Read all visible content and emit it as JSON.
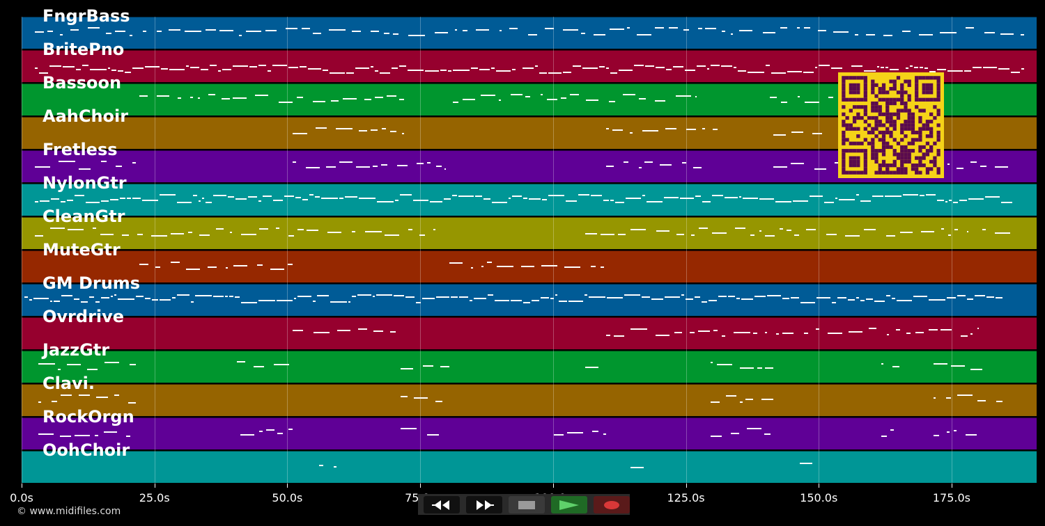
{
  "tracks": [
    {
      "name": "FngrBass",
      "color": "#005b96"
    },
    {
      "name": "BritePno",
      "color": "#96002e"
    },
    {
      "name": "Bassoon",
      "color": "#00962e"
    },
    {
      "name": "AahChoir",
      "color": "#966400"
    },
    {
      "name": "Fretless",
      "color": "#5f0096"
    },
    {
      "name": "NylonGtr",
      "color": "#009696"
    },
    {
      "name": "CleanGtr",
      "color": "#969600"
    },
    {
      "name": "MuteGtr",
      "color": "#962800"
    },
    {
      "name": "GM Drums",
      "color": "#005b96"
    },
    {
      "name": "Ovrdrive",
      "color": "#96002e"
    },
    {
      "name": "JazzGtr",
      "color": "#00962e"
    },
    {
      "name": "Clavi.",
      "color": "#966400"
    },
    {
      "name": "RockOrgn",
      "color": "#5f0096"
    },
    {
      "name": "OohChoir",
      "color": "#009696"
    }
  ],
  "timeline": {
    "ticks": [
      "0.0s",
      "25.0s",
      "50.0s",
      "75.0s",
      "100.0s",
      "125.0s",
      "150.0s",
      "175.0s"
    ],
    "max_seconds": 191
  },
  "copyright": "© www.midifiles.com",
  "transport": {
    "rewind_icon": "rewind-icon",
    "fast_forward_icon": "fast-forward-icon",
    "stop_icon": "stop-icon",
    "play_icon": "play-icon",
    "record_icon": "record-icon"
  },
  "qr_colors": {
    "background": "#f5d318",
    "modules": "#5a0a4e"
  }
}
